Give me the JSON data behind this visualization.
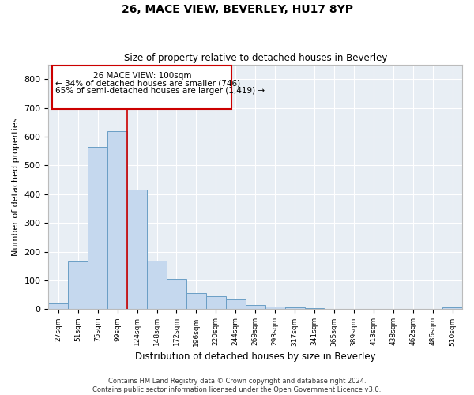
{
  "title": "26, MACE VIEW, BEVERLEY, HU17 8YP",
  "subtitle": "Size of property relative to detached houses in Beverley",
  "xlabel": "Distribution of detached houses by size in Beverley",
  "ylabel": "Number of detached properties",
  "bar_heights": [
    20,
    165,
    565,
    620,
    415,
    170,
    105,
    57,
    45,
    33,
    15,
    10,
    7,
    5,
    0,
    0,
    0,
    0,
    0,
    0,
    7
  ],
  "bar_labels": [
    "27sqm",
    "51sqm",
    "75sqm",
    "99sqm",
    "124sqm",
    "148sqm",
    "172sqm",
    "196sqm",
    "220sqm",
    "244sqm",
    "269sqm",
    "293sqm",
    "317sqm",
    "341sqm",
    "365sqm",
    "389sqm",
    "413sqm",
    "438sqm",
    "462sqm",
    "486sqm",
    "510sqm"
  ],
  "bar_color": "#c5d8ee",
  "bar_edge_color": "#6a9ec5",
  "annotation_text_line1": "26 MACE VIEW: 100sqm",
  "annotation_text_line2": "← 34% of detached houses are smaller (746)",
  "annotation_text_line3": "65% of semi-detached houses are larger (1,419) →",
  "vline_color": "#cc0000",
  "box_edge_color": "#cc0000",
  "ylim": [
    0,
    850
  ],
  "yticks": [
    0,
    100,
    200,
    300,
    400,
    500,
    600,
    700,
    800
  ],
  "footer_line1": "Contains HM Land Registry data © Crown copyright and database right 2024.",
  "footer_line2": "Contains public sector information licensed under the Open Government Licence v3.0.",
  "background_color": "#e8eef4",
  "grid_color": "#ffffff"
}
